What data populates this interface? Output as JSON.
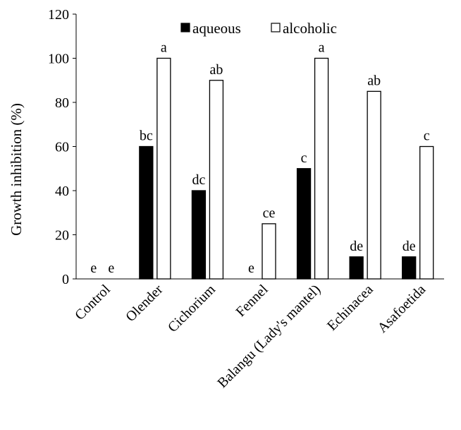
{
  "chart_data": {
    "type": "bar",
    "title": "",
    "xlabel": "",
    "ylabel": "Growth inhibition  (%)",
    "ylim": [
      0,
      120
    ],
    "yticks": [
      "0",
      "20",
      "40",
      "60",
      "80",
      "100",
      "120"
    ],
    "categories": [
      "Control",
      "Olender",
      "Cichorium",
      "Fennel",
      "Balangu (Lady's mantel)",
      "Echinacea",
      "Asafoetida"
    ],
    "series": [
      {
        "name": "aqueous",
        "color": "#000000",
        "values": [
          0,
          60,
          40,
          0,
          50,
          10,
          10
        ],
        "labels": [
          "e",
          "bc",
          "dc",
          "e",
          "c",
          "de",
          "de"
        ]
      },
      {
        "name": "alcoholic",
        "color": "#ffffff",
        "values": [
          0,
          100,
          90,
          25,
          100,
          85,
          60
        ],
        "labels": [
          "e",
          "a",
          "ab",
          "ce",
          "a",
          "ab",
          "c"
        ]
      }
    ],
    "legend": {
      "position": "top-center"
    },
    "grid": false
  }
}
